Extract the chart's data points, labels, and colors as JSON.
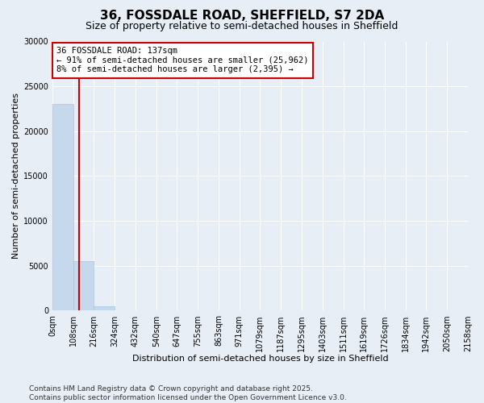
{
  "title_line1": "36, FOSSDALE ROAD, SHEFFIELD, S7 2DA",
  "title_line2": "Size of property relative to semi-detached houses in Sheffield",
  "xlabel": "Distribution of semi-detached houses by size in Sheffield",
  "ylabel": "Number of semi-detached properties",
  "bar_color": "#c6d9ec",
  "bar_edge_color": "#a8c4dc",
  "property_size": 137,
  "property_line_color": "#cc0000",
  "annotation_line1": "36 FOSSDALE ROAD: 137sqm",
  "annotation_line2": "← 91% of semi-detached houses are smaller (25,962)",
  "annotation_line3": "8% of semi-detached houses are larger (2,395) →",
  "annotation_box_color": "#cc0000",
  "bin_edges": [
    0,
    108,
    216,
    324,
    432,
    540,
    647,
    755,
    863,
    971,
    1079,
    1187,
    1295,
    1403,
    1511,
    1619,
    1726,
    1834,
    1942,
    2050,
    2158
  ],
  "bar_heights": [
    23000,
    5500,
    480,
    50,
    20,
    8,
    4,
    2,
    1,
    1,
    0,
    0,
    0,
    0,
    0,
    0,
    0,
    0,
    0,
    0
  ],
  "ylim": [
    0,
    30000
  ],
  "yticks": [
    0,
    5000,
    10000,
    15000,
    20000,
    25000,
    30000
  ],
  "background_color": "#e8eef6",
  "plot_bg_color": "#e8eef6",
  "footer_text": "Contains HM Land Registry data © Crown copyright and database right 2025.\nContains public sector information licensed under the Open Government Licence v3.0.",
  "grid_color": "#ffffff",
  "title1_fontsize": 11,
  "title2_fontsize": 9,
  "axis_label_fontsize": 8,
  "tick_fontsize": 7,
  "annotation_fontsize": 7.5,
  "footer_fontsize": 6.5
}
